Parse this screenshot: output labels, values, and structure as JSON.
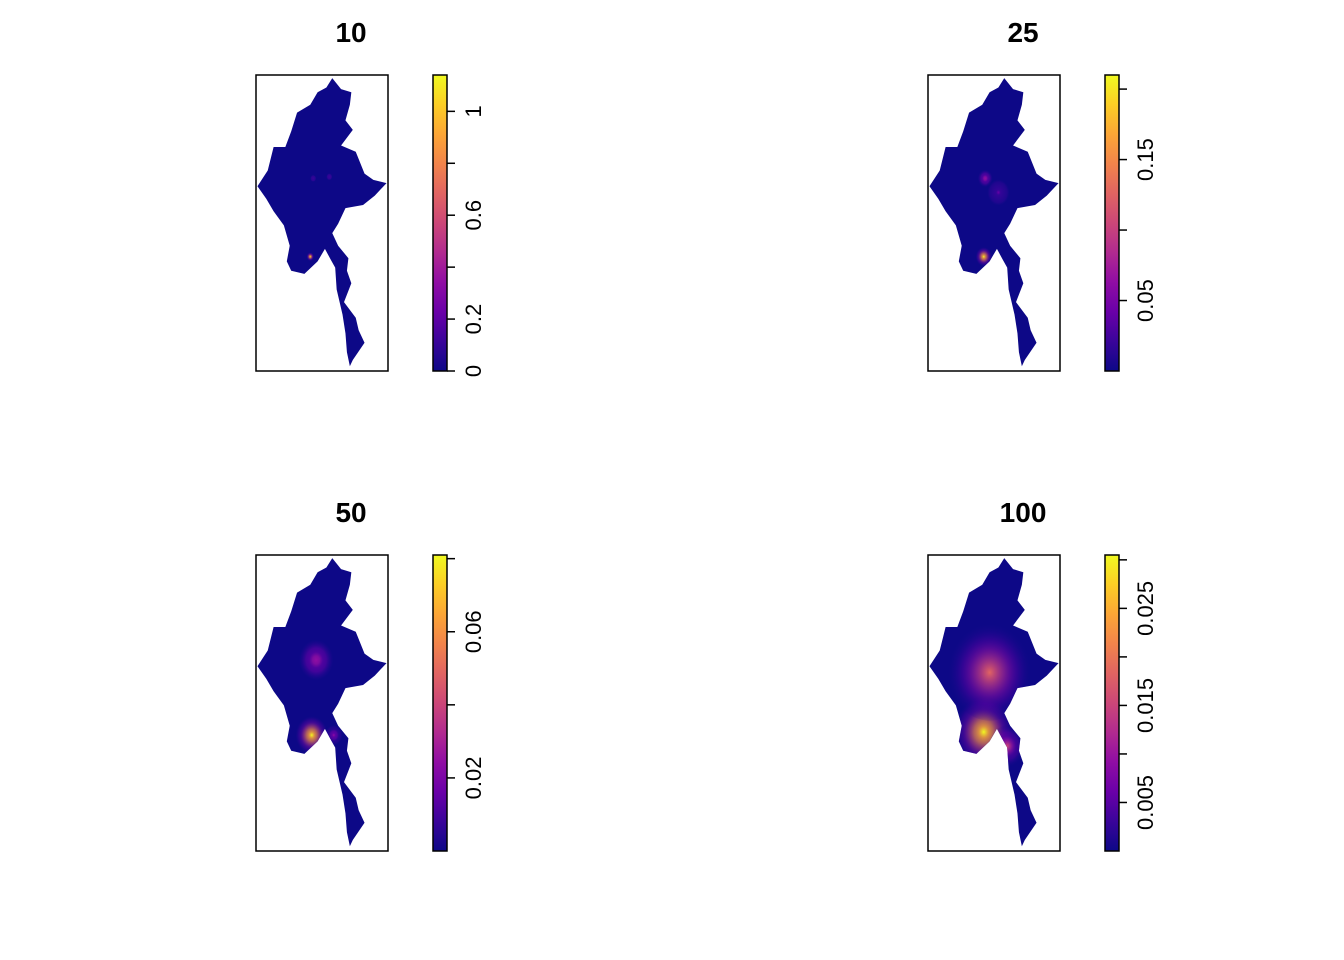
{
  "panels": [
    {
      "title": "10",
      "legend": {
        "min": 0,
        "max": 1.14,
        "ticks": [
          0,
          0.2,
          0.4,
          0.6,
          0.8,
          1
        ],
        "labels": [
          "0",
          "0.2",
          "",
          "0.6",
          "",
          "1"
        ]
      },
      "hotspots": [
        {
          "lon": 95.9,
          "lat": 16.9,
          "radius_deg": 0.25,
          "level": 1.0
        },
        {
          "lon": 96.1,
          "lat": 21.9,
          "radius_deg": 0.3,
          "level": 0.12
        },
        {
          "lon": 97.2,
          "lat": 22.0,
          "radius_deg": 0.4,
          "level": 0.08
        }
      ]
    },
    {
      "title": "25",
      "legend": {
        "min": 0,
        "max": 0.21,
        "ticks": [
          0.05,
          0.1,
          0.15,
          0.2
        ],
        "labels": [
          "0.05",
          "",
          "0.15",
          ""
        ]
      },
      "hotspots": [
        {
          "lon": 96.0,
          "lat": 16.9,
          "radius_deg": 0.55,
          "level": 1.0
        },
        {
          "lon": 96.1,
          "lat": 21.9,
          "radius_deg": 0.6,
          "level": 0.3
        },
        {
          "lon": 97.0,
          "lat": 21.0,
          "radius_deg": 0.9,
          "level": 0.15
        }
      ]
    },
    {
      "title": "50",
      "legend": {
        "min": 0,
        "max": 0.081,
        "ticks": [
          0.02,
          0.04,
          0.06,
          0.08
        ],
        "labels": [
          "0.02",
          "",
          "0.06",
          ""
        ]
      },
      "hotspots": [
        {
          "lon": 96.0,
          "lat": 17.0,
          "radius_deg": 1.1,
          "level": 1.0
        },
        {
          "lon": 96.3,
          "lat": 21.8,
          "radius_deg": 1.4,
          "level": 0.3
        },
        {
          "lon": 97.5,
          "lat": 17.0,
          "radius_deg": 0.7,
          "level": 0.25
        }
      ]
    },
    {
      "title": "100",
      "legend": {
        "min": 0,
        "max": 0.0305,
        "ticks": [
          0.005,
          0.01,
          0.015,
          0.02,
          0.025,
          0.03
        ],
        "labels": [
          "0.005",
          "",
          "0.015",
          "",
          "0.025",
          ""
        ]
      },
      "hotspots": [
        {
          "lon": 96.0,
          "lat": 17.2,
          "radius_deg": 2.0,
          "level": 1.0
        },
        {
          "lon": 96.4,
          "lat": 21.0,
          "radius_deg": 2.8,
          "level": 0.55
        },
        {
          "lon": 97.6,
          "lat": 16.3,
          "radius_deg": 1.2,
          "level": 0.45
        }
      ]
    }
  ],
  "colors": {
    "ramp": [
      "#0d0887",
      "#3a049a",
      "#6a00a8",
      "#900da4",
      "#b12a90",
      "#cc4778",
      "#e16462",
      "#f2844b",
      "#fca636",
      "#fcce25",
      "#f0f921"
    ],
    "outside_map": "#ffffff",
    "frame": "#000000"
  },
  "map": {
    "lon_range": [
      92.2,
      101.2
    ],
    "lat_range": [
      9.6,
      28.5
    ],
    "outline": [
      [
        97.4,
        28.3
      ],
      [
        98.0,
        27.6
      ],
      [
        98.7,
        27.4
      ],
      [
        98.6,
        26.6
      ],
      [
        98.3,
        25.6
      ],
      [
        98.8,
        25.0
      ],
      [
        98.0,
        24.0
      ],
      [
        99.0,
        23.6
      ],
      [
        99.6,
        22.2
      ],
      [
        100.2,
        21.8
      ],
      [
        101.1,
        21.6
      ],
      [
        100.3,
        20.8
      ],
      [
        99.5,
        20.2
      ],
      [
        98.3,
        20.0
      ],
      [
        97.8,
        19.0
      ],
      [
        97.4,
        18.4
      ],
      [
        97.8,
        17.6
      ],
      [
        98.5,
        16.8
      ],
      [
        98.4,
        16.0
      ],
      [
        98.7,
        15.2
      ],
      [
        98.2,
        14.0
      ],
      [
        99.0,
        13.0
      ],
      [
        99.2,
        12.2
      ],
      [
        99.6,
        11.4
      ],
      [
        98.8,
        10.3
      ],
      [
        98.6,
        9.9
      ],
      [
        98.4,
        10.8
      ],
      [
        98.3,
        12.0
      ],
      [
        98.1,
        13.2
      ],
      [
        97.7,
        14.8
      ],
      [
        97.6,
        16.2
      ],
      [
        97.3,
        16.7
      ],
      [
        96.9,
        17.4
      ],
      [
        96.4,
        16.6
      ],
      [
        95.5,
        15.8
      ],
      [
        94.6,
        16.0
      ],
      [
        94.3,
        16.6
      ],
      [
        94.5,
        17.6
      ],
      [
        94.1,
        18.9
      ],
      [
        93.4,
        19.8
      ],
      [
        92.9,
        20.6
      ],
      [
        92.3,
        21.4
      ],
      [
        93.0,
        22.4
      ],
      [
        93.4,
        23.9
      ],
      [
        94.2,
        23.9
      ],
      [
        94.6,
        24.9
      ],
      [
        95.0,
        26.1
      ],
      [
        95.9,
        26.6
      ],
      [
        96.4,
        27.4
      ],
      [
        97.0,
        27.7
      ],
      [
        97.4,
        28.3
      ]
    ]
  }
}
